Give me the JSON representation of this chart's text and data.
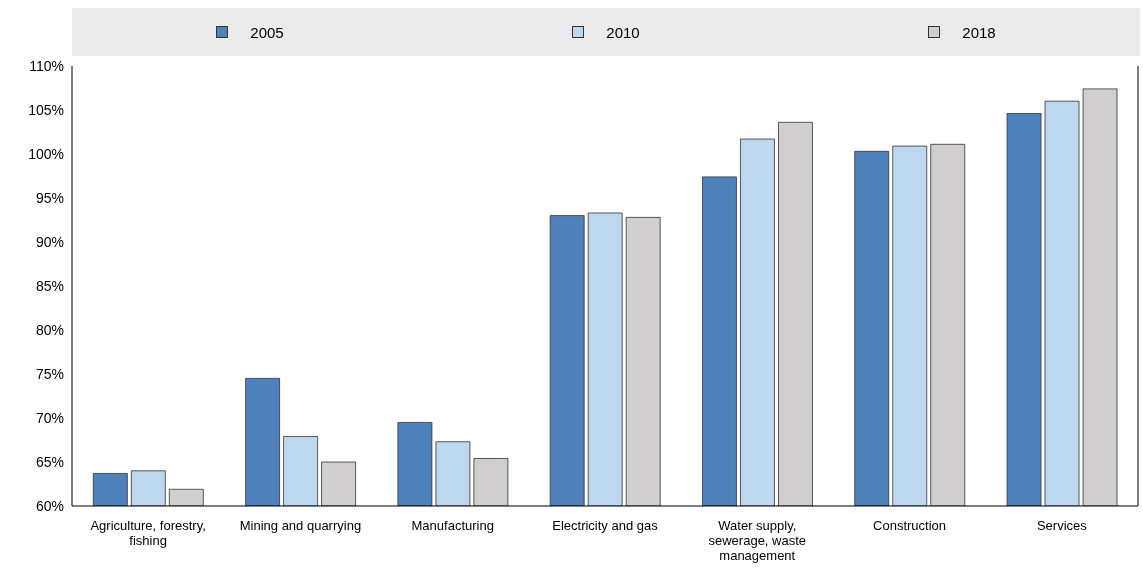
{
  "chart_data": {
    "type": "bar",
    "categories": [
      "Agriculture, forestry, fishing",
      "Mining and quarrying",
      "Manufacturing",
      "Electricity and gas",
      "Water supply, sewerage, waste management",
      "Construction",
      "Services"
    ],
    "series": [
      {
        "name": "2005",
        "color": "#4f81bd",
        "values": [
          63.7,
          74.5,
          69.5,
          93.0,
          97.4,
          100.3,
          104.6
        ]
      },
      {
        "name": "2010",
        "color": "#bdd7ee",
        "values": [
          64.0,
          67.9,
          67.3,
          93.3,
          101.7,
          100.9,
          106.0
        ]
      },
      {
        "name": "2018",
        "color": "#d0cece",
        "values": [
          61.9,
          65.0,
          65.4,
          92.8,
          103.6,
          101.1,
          107.4
        ]
      }
    ],
    "ylim": [
      60,
      110
    ],
    "yticks": [
      {
        "value": 60,
        "label": "60%"
      },
      {
        "value": 65,
        "label": "65%"
      },
      {
        "value": 70,
        "label": "70%"
      },
      {
        "value": 75,
        "label": "75%"
      },
      {
        "value": 80,
        "label": "80%"
      },
      {
        "value": 85,
        "label": "85%"
      },
      {
        "value": 90,
        "label": "90%"
      },
      {
        "value": 95,
        "label": "95%"
      },
      {
        "value": 100,
        "label": "100%"
      },
      {
        "value": 105,
        "label": "105%"
      },
      {
        "value": 110,
        "label": "110%"
      }
    ],
    "legend": "top",
    "grid": false
  }
}
